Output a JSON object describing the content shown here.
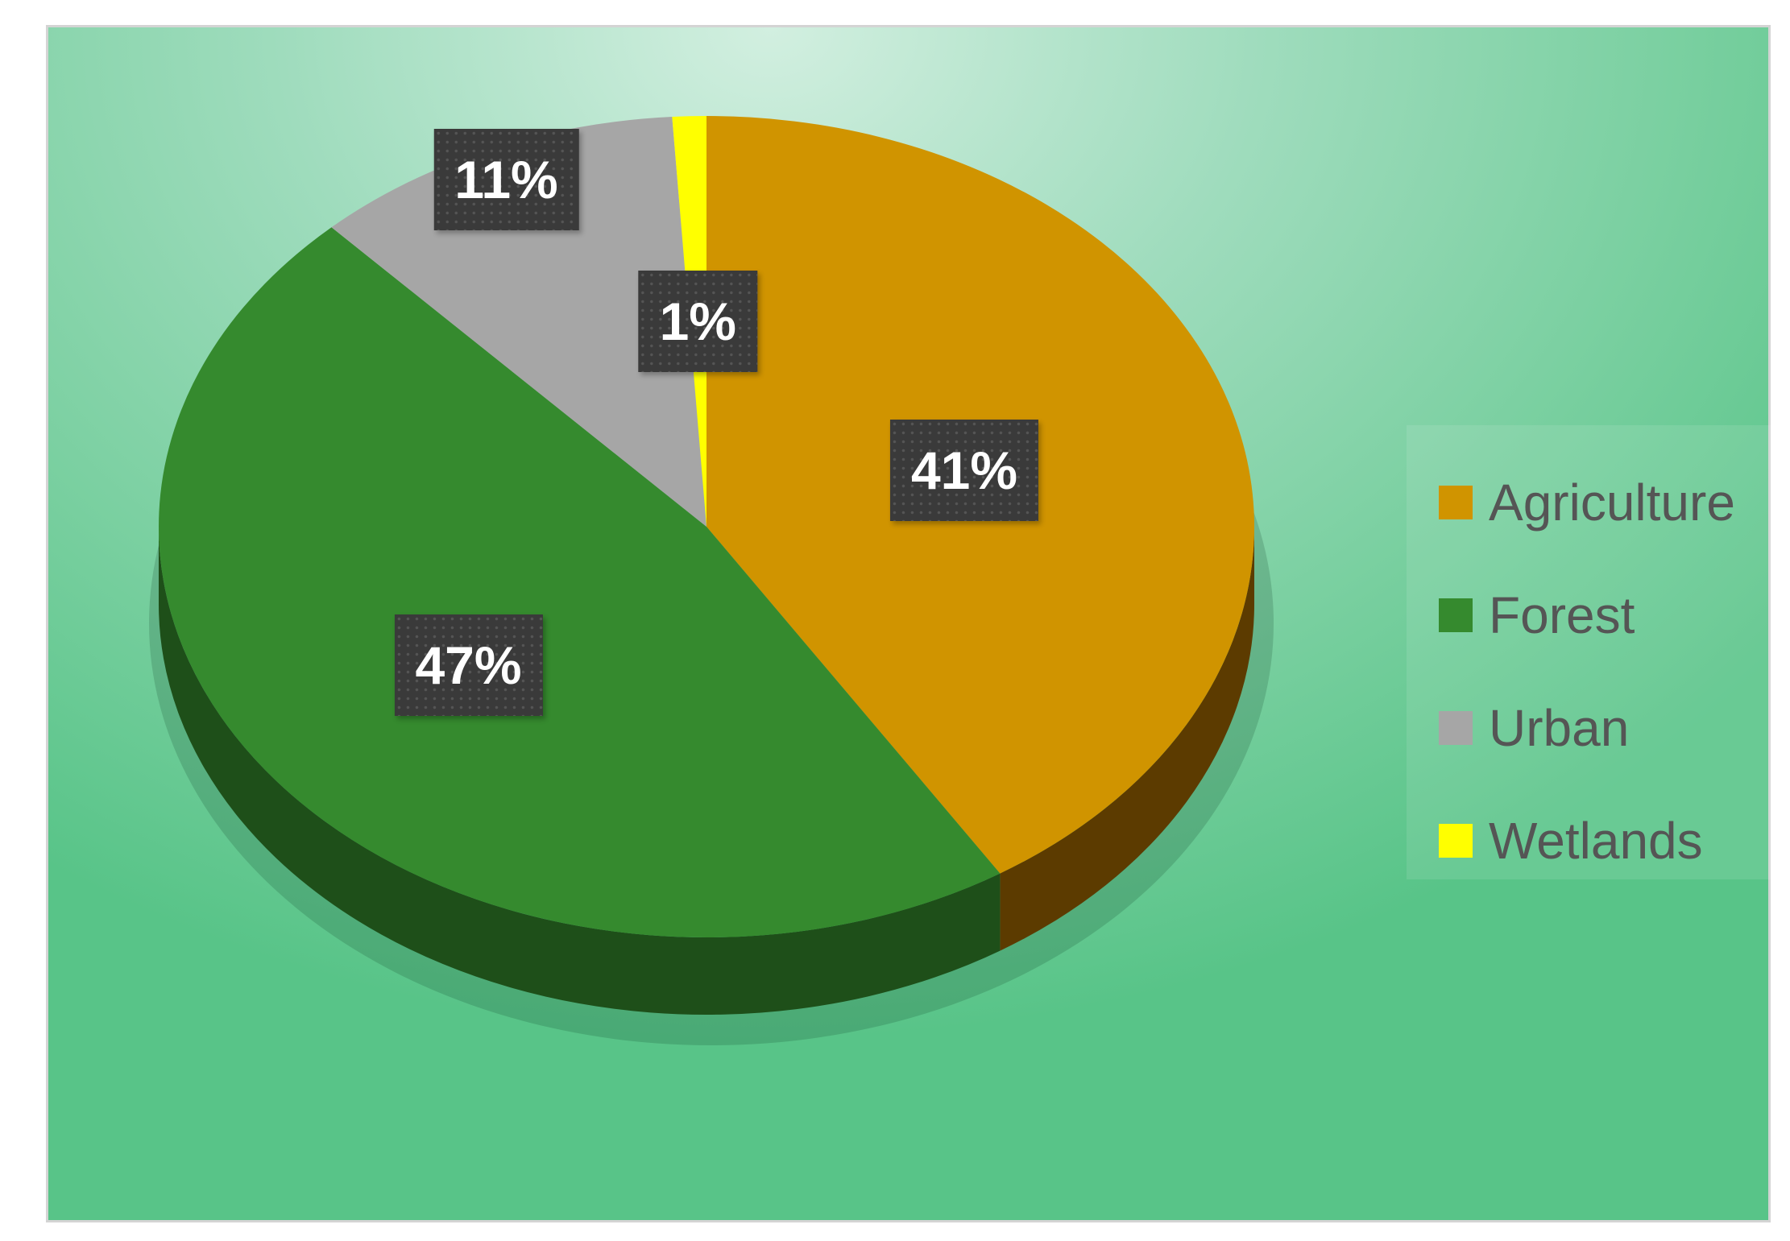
{
  "chart_data": {
    "type": "pie",
    "style": "3d",
    "categories": [
      "Agriculture",
      "Forest",
      "Urban",
      "Wetlands"
    ],
    "values": [
      41,
      47,
      11,
      1
    ],
    "labels": [
      "41%",
      "47%",
      "11%",
      "1%"
    ],
    "colors": [
      "#D09400",
      "#358A2E",
      "#A6A6A6",
      "#FFFF00"
    ],
    "side_colors": [
      "#5C3B00",
      "#1E4F19",
      "#6E6E6E",
      "#A5A500"
    ],
    "start_angle_deg": 0,
    "direction": "clockwise",
    "legend_position": "right",
    "background": [
      "#D2EFE0",
      "#58C488"
    ]
  }
}
